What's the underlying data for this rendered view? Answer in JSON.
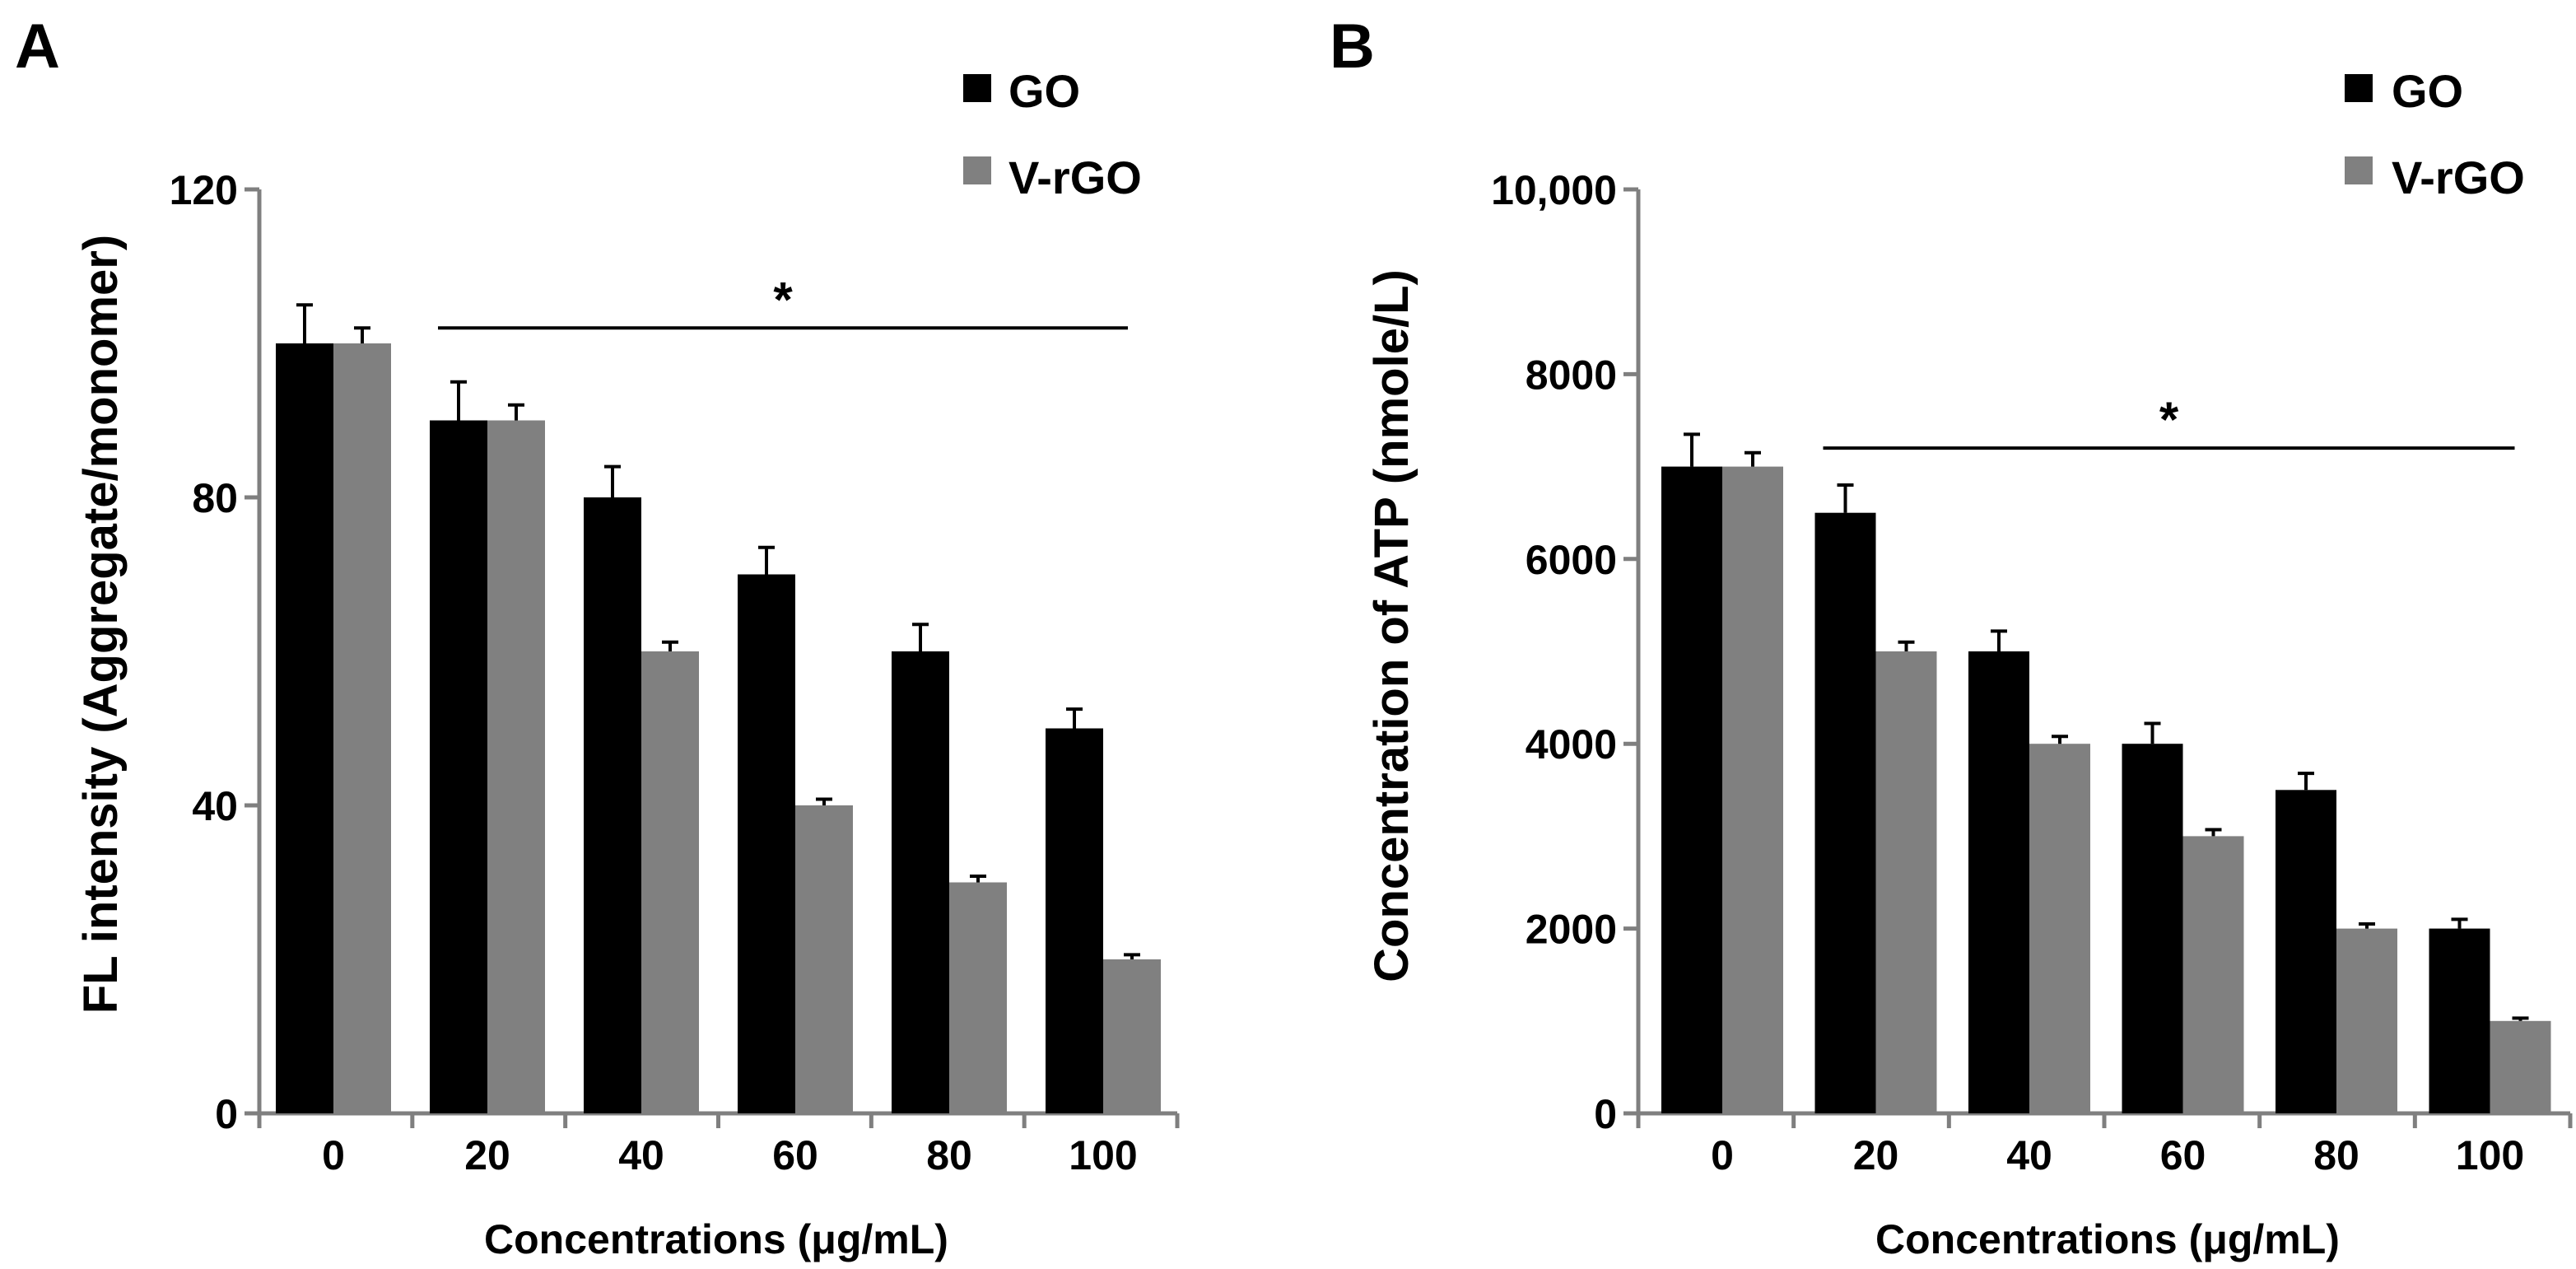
{
  "colors": {
    "GO": "#000000",
    "V-rGO": "#808080"
  },
  "chart_data": [
    {
      "panel": "A",
      "type": "bar",
      "categories": [
        "0",
        "20",
        "40",
        "60",
        "80",
        "100"
      ],
      "series": [
        {
          "name": "GO",
          "values": [
            100,
            90,
            80,
            70,
            60,
            50
          ],
          "errors": [
            5,
            5,
            4,
            3.5,
            3.5,
            2.5
          ]
        },
        {
          "name": "V-rGO",
          "values": [
            100,
            90,
            60,
            40,
            30,
            20
          ],
          "errors": [
            2,
            2,
            1.2,
            0.8,
            0.8,
            0.6
          ]
        }
      ],
      "ylabel": "FL intensity (Aggregate/monomer)",
      "xlabel": "Concentrations (μg/mL)",
      "ylim": [
        0,
        120
      ],
      "yticks": [
        0,
        40,
        80,
        120
      ],
      "ytick_labels": [
        "0",
        "40",
        "80",
        "120"
      ],
      "legend": "top-right",
      "significance": {
        "label": "*",
        "from": "20",
        "to": "100",
        "y": 102
      }
    },
    {
      "panel": "B",
      "type": "bar",
      "categories": [
        "0",
        "20",
        "40",
        "60",
        "80",
        "100"
      ],
      "series": [
        {
          "name": "GO",
          "values": [
            7000,
            6500,
            5000,
            4000,
            3500,
            2000
          ],
          "errors": [
            350,
            300,
            220,
            220,
            180,
            100
          ]
        },
        {
          "name": "V-rGO",
          "values": [
            7000,
            5000,
            4000,
            3000,
            2000,
            1000
          ],
          "errors": [
            150,
            100,
            80,
            70,
            50,
            30
          ]
        }
      ],
      "ylabel": "Concentration of ATP (nmole/L)",
      "xlabel": "Concentrations (μg/mL)",
      "ylim": [
        0,
        10000
      ],
      "yticks": [
        0,
        2000,
        4000,
        6000,
        8000,
        10000
      ],
      "ytick_labels": [
        "0",
        "2000",
        "4000",
        "6000",
        "8000",
        "10,000"
      ],
      "legend": "top-right",
      "significance": {
        "label": "*",
        "from": "20",
        "to": "100",
        "y": 7200
      }
    }
  ]
}
